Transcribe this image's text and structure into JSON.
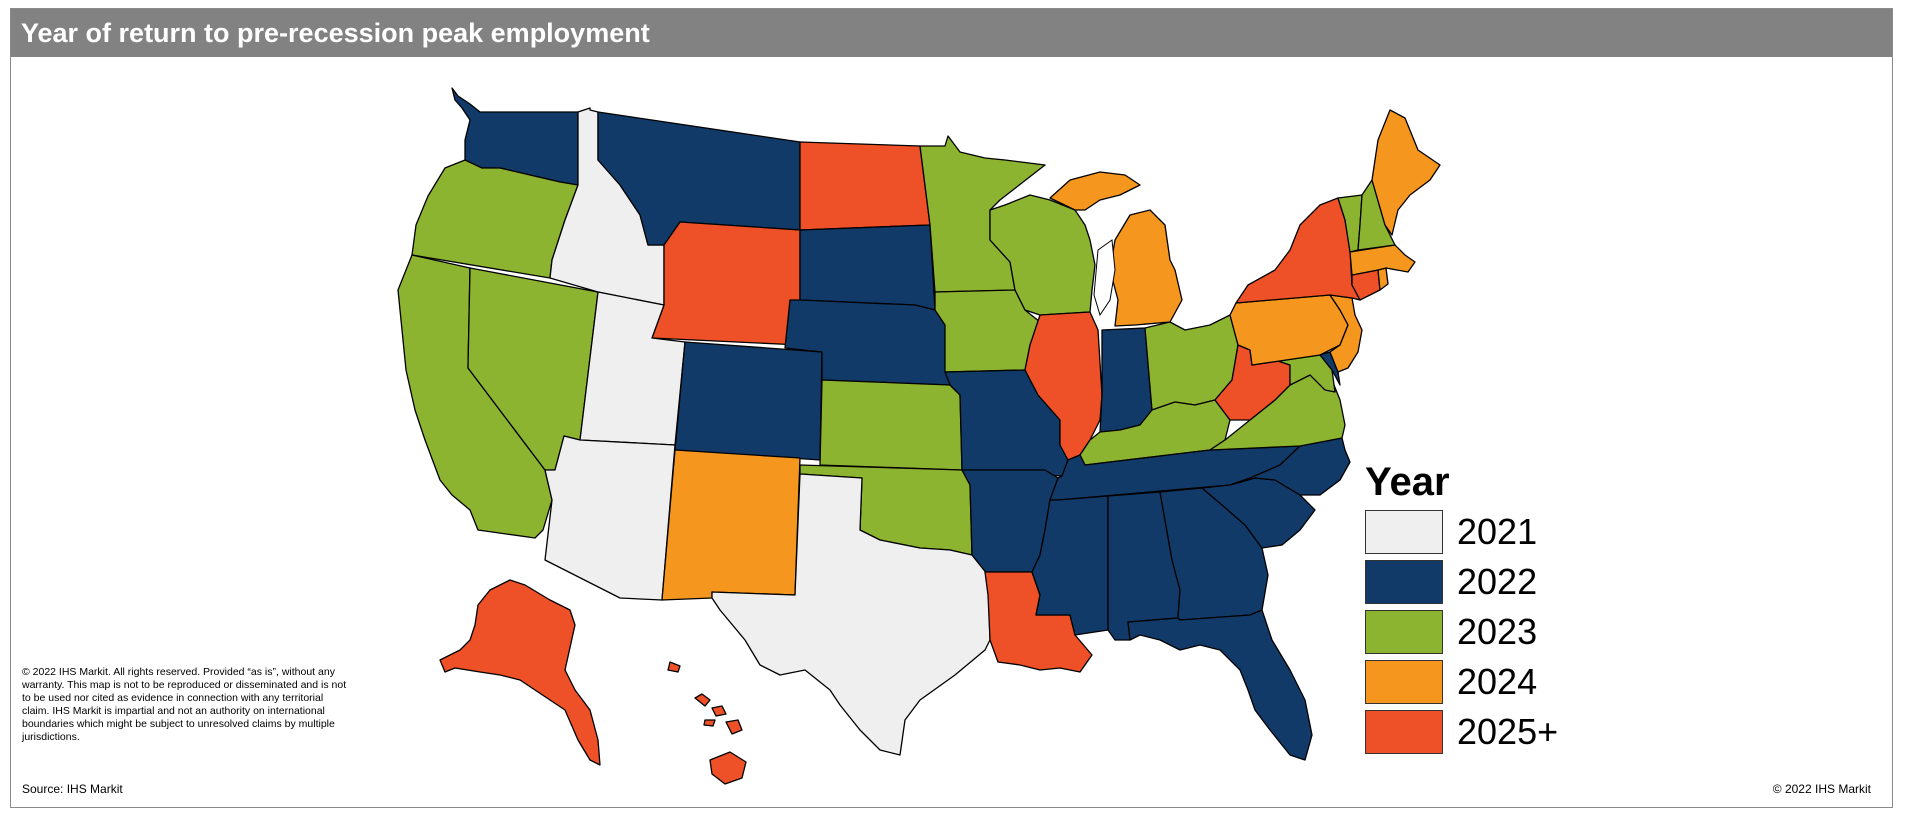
{
  "title": "Year of return to pre-recession peak employment",
  "colors": {
    "2021": "#efefef",
    "2022": "#123a68",
    "2023": "#8db430",
    "2024": "#f5961e",
    "2025+": "#ee5027"
  },
  "legend": {
    "title": "Year",
    "items": [
      {
        "key": "2021",
        "label": "2021"
      },
      {
        "key": "2022",
        "label": "2022"
      },
      {
        "key": "2023",
        "label": "2023"
      },
      {
        "key": "2024",
        "label": "2024"
      },
      {
        "key": "2025+",
        "label": "2025+"
      }
    ]
  },
  "states": {
    "WA": "2022",
    "OR": "2023",
    "CA": "2023",
    "NV": "2023",
    "ID": "2021",
    "MT": "2022",
    "WY": "2025+",
    "UT": "2021",
    "AZ": "2021",
    "CO": "2022",
    "NM": "2024",
    "ND": "2025+",
    "SD": "2022",
    "NE": "2022",
    "KS": "2023",
    "OK": "2023",
    "TX": "2021",
    "MN": "2023",
    "IA": "2023",
    "MO": "2022",
    "AR": "2022",
    "LA": "2025+",
    "WI": "2023",
    "IL": "2025+",
    "MI": "2024",
    "IN": "2022",
    "OH": "2023",
    "KY": "2023",
    "TN": "2022",
    "MS": "2022",
    "AL": "2022",
    "GA": "2022",
    "FL": "2022",
    "SC": "2022",
    "NC": "2022",
    "VA": "2023",
    "WV": "2025+",
    "MD": "2023",
    "DE": "2022",
    "NJ": "2024",
    "PA": "2024",
    "NY": "2025+",
    "CT": "2025+",
    "RI": "2024",
    "MA": "2024",
    "VT": "2023",
    "NH": "2023",
    "ME": "2024",
    "AK": "2025+",
    "HI": "2025+"
  },
  "disclaimer": "© 2022 IHS Markit. All rights reserved. Provided “as is”, without any warranty. This map is not to be reproduced or disseminated and is not to be used nor cited as evidence in connection with any territorial claim. IHS  Markit is impartial and not an authority on international boundaries which might be subject to unresolved claims by multiple jurisdictions.",
  "source": "Source: IHS Markit",
  "copyright": "© 2022 IHS Markit"
}
